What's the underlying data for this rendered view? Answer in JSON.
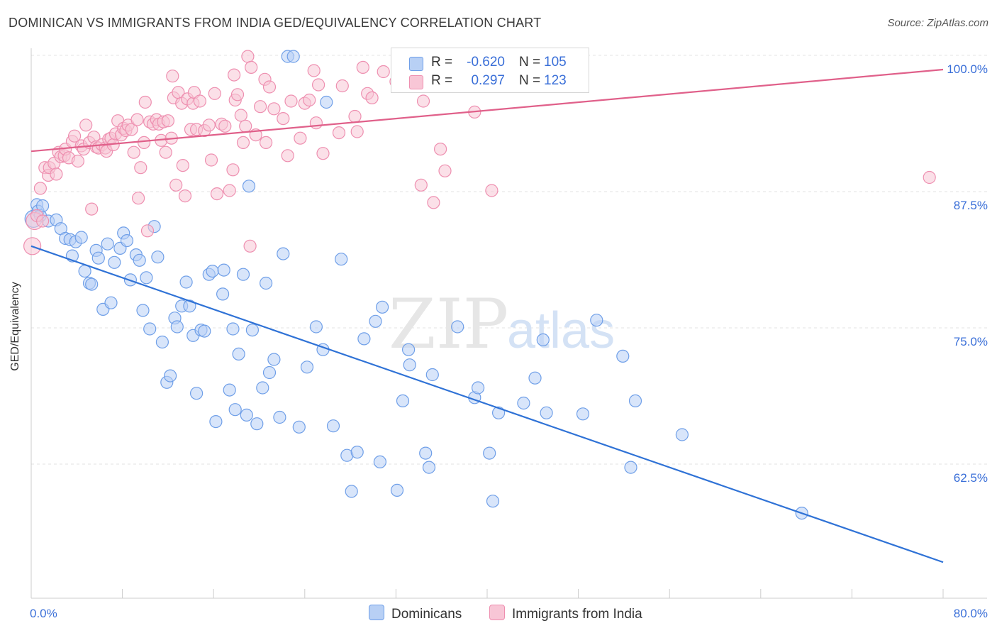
{
  "title": "DOMINICAN VS IMMIGRANTS FROM INDIA GED/EQUIVALENCY CORRELATION CHART",
  "source": "Source: ZipAtlas.com",
  "watermark": {
    "zip": "ZIP",
    "atlas": "atlas"
  },
  "legend": {
    "r_label": "R =",
    "n_label": "N =",
    "rows": [
      {
        "r": "-0.620",
        "n": "105"
      },
      {
        "r": "0.297",
        "n": "123"
      }
    ]
  },
  "chart_data": {
    "type": "scatter",
    "title": "DOMINICAN VS IMMIGRANTS FROM INDIA GED/EQUIVALENCY CORRELATION CHART",
    "xlabel": "",
    "ylabel": "GED/Equivalency",
    "xlim": [
      0,
      80
    ],
    "ylim": [
      50,
      100
    ],
    "x_ticks": [
      "0.0%",
      "80.0%"
    ],
    "y_ticks": [
      {
        "value": 100,
        "label": "100.0%"
      },
      {
        "value": 87.5,
        "label": "87.5%"
      },
      {
        "value": 75,
        "label": "75.0%"
      },
      {
        "value": 62.5,
        "label": "62.5%"
      }
    ],
    "grid": true,
    "legend_position": "top-center",
    "series": [
      {
        "name": "Dominicans",
        "color": "#6f9fe8",
        "fill": "#b8d0f5",
        "r": -0.62,
        "n": 105,
        "trend": {
          "x": [
            0,
            80
          ],
          "y": [
            82.5,
            53.5
          ],
          "color": "#2f72d6"
        },
        "points": [
          [
            0.2,
            85.0
          ],
          [
            0.5,
            86.3
          ],
          [
            0.6,
            85.7
          ],
          [
            0.8,
            85.3
          ],
          [
            1.0,
            86.2
          ],
          [
            1.5,
            84.8
          ],
          [
            2.2,
            84.9
          ],
          [
            2.6,
            84.1
          ],
          [
            3.0,
            83.2
          ],
          [
            3.4,
            83.1
          ],
          [
            3.6,
            81.6
          ],
          [
            3.9,
            82.9
          ],
          [
            4.4,
            83.3
          ],
          [
            4.7,
            80.2
          ],
          [
            5.1,
            79.1
          ],
          [
            5.3,
            79.0
          ],
          [
            5.7,
            82.1
          ],
          [
            5.9,
            81.4
          ],
          [
            6.3,
            76.7
          ],
          [
            6.7,
            82.7
          ],
          [
            7.0,
            77.3
          ],
          [
            7.3,
            81.0
          ],
          [
            7.8,
            82.3
          ],
          [
            8.1,
            83.7
          ],
          [
            8.4,
            83.0
          ],
          [
            8.7,
            79.4
          ],
          [
            9.2,
            81.7
          ],
          [
            9.5,
            81.2
          ],
          [
            9.8,
            76.6
          ],
          [
            10.1,
            79.6
          ],
          [
            10.4,
            74.9
          ],
          [
            10.8,
            84.3
          ],
          [
            11.1,
            81.5
          ],
          [
            11.5,
            73.7
          ],
          [
            11.9,
            70.0
          ],
          [
            12.2,
            70.6
          ],
          [
            12.6,
            75.9
          ],
          [
            12.8,
            75.1
          ],
          [
            13.2,
            77.0
          ],
          [
            13.6,
            79.2
          ],
          [
            13.9,
            77.0
          ],
          [
            14.2,
            74.3
          ],
          [
            14.5,
            69.0
          ],
          [
            14.9,
            74.8
          ],
          [
            15.2,
            74.7
          ],
          [
            15.6,
            79.9
          ],
          [
            15.9,
            80.2
          ],
          [
            16.2,
            66.4
          ],
          [
            16.8,
            78.1
          ],
          [
            16.9,
            80.3
          ],
          [
            17.4,
            69.3
          ],
          [
            17.7,
            74.9
          ],
          [
            17.9,
            67.5
          ],
          [
            18.2,
            72.6
          ],
          [
            18.6,
            79.9
          ],
          [
            18.9,
            67.0
          ],
          [
            19.1,
            88.0
          ],
          [
            19.4,
            74.8
          ],
          [
            19.8,
            66.2
          ],
          [
            20.3,
            69.5
          ],
          [
            20.6,
            79.1
          ],
          [
            20.9,
            70.9
          ],
          [
            21.3,
            72.1
          ],
          [
            21.8,
            66.8
          ],
          [
            22.1,
            81.8
          ],
          [
            22.5,
            99.9
          ],
          [
            23.0,
            99.9
          ],
          [
            23.5,
            65.9
          ],
          [
            24.2,
            71.4
          ],
          [
            25.0,
            75.1
          ],
          [
            25.6,
            73.0
          ],
          [
            25.9,
            95.7
          ],
          [
            26.5,
            66.0
          ],
          [
            27.2,
            81.3
          ],
          [
            27.7,
            63.3
          ],
          [
            28.1,
            60.0
          ],
          [
            28.6,
            63.6
          ],
          [
            29.2,
            74.0
          ],
          [
            30.2,
            75.6
          ],
          [
            30.6,
            62.7
          ],
          [
            30.8,
            76.9
          ],
          [
            32.1,
            60.1
          ],
          [
            32.6,
            68.3
          ],
          [
            33.1,
            73.0
          ],
          [
            33.2,
            71.6
          ],
          [
            34.6,
            63.5
          ],
          [
            34.9,
            62.2
          ],
          [
            35.2,
            70.7
          ],
          [
            37.4,
            75.1
          ],
          [
            38.9,
            68.6
          ],
          [
            39.2,
            69.5
          ],
          [
            40.2,
            63.5
          ],
          [
            40.5,
            59.1
          ],
          [
            41.0,
            67.2
          ],
          [
            43.2,
            68.1
          ],
          [
            44.2,
            70.4
          ],
          [
            44.9,
            73.9
          ],
          [
            45.2,
            67.2
          ],
          [
            48.4,
            67.1
          ],
          [
            49.6,
            75.7
          ],
          [
            51.9,
            72.4
          ],
          [
            52.6,
            62.2
          ],
          [
            53.0,
            68.3
          ],
          [
            57.1,
            65.2
          ],
          [
            67.6,
            58.0
          ]
        ]
      },
      {
        "name": "Immigrants from India",
        "color": "#ee8fb0",
        "fill": "#f8c6d6",
        "r": 0.297,
        "n": 123,
        "trend": {
          "x": [
            0,
            80
          ],
          "y": [
            91.2,
            98.7
          ],
          "color": "#e0608a"
        },
        "points": [
          [
            0.1,
            82.5
          ],
          [
            0.3,
            84.8
          ],
          [
            0.5,
            85.3
          ],
          [
            0.8,
            87.8
          ],
          [
            1.0,
            84.8
          ],
          [
            1.2,
            89.7
          ],
          [
            1.5,
            89.0
          ],
          [
            1.6,
            89.7
          ],
          [
            2.0,
            90.1
          ],
          [
            2.2,
            89.1
          ],
          [
            2.4,
            91.1
          ],
          [
            2.6,
            90.7
          ],
          [
            2.9,
            90.8
          ],
          [
            3.0,
            91.4
          ],
          [
            3.3,
            90.6
          ],
          [
            3.6,
            92.1
          ],
          [
            3.8,
            92.6
          ],
          [
            4.1,
            90.3
          ],
          [
            4.4,
            91.7
          ],
          [
            4.6,
            91.4
          ],
          [
            4.8,
            93.6
          ],
          [
            5.1,
            92.0
          ],
          [
            5.3,
            85.9
          ],
          [
            5.5,
            92.5
          ],
          [
            5.7,
            91.6
          ],
          [
            5.9,
            91.5
          ],
          [
            6.2,
            91.8
          ],
          [
            6.5,
            91.5
          ],
          [
            6.6,
            91.2
          ],
          [
            6.8,
            92.3
          ],
          [
            7.0,
            92.4
          ],
          [
            7.2,
            91.8
          ],
          [
            7.4,
            92.8
          ],
          [
            7.6,
            94.0
          ],
          [
            7.9,
            92.7
          ],
          [
            8.1,
            93.3
          ],
          [
            8.3,
            93.1
          ],
          [
            8.5,
            93.6
          ],
          [
            8.8,
            93.2
          ],
          [
            9.0,
            91.1
          ],
          [
            9.3,
            94.1
          ],
          [
            9.4,
            86.9
          ],
          [
            9.6,
            89.7
          ],
          [
            9.9,
            92.0
          ],
          [
            10.0,
            95.7
          ],
          [
            10.2,
            83.9
          ],
          [
            10.4,
            93.9
          ],
          [
            10.7,
            93.7
          ],
          [
            11.0,
            94.1
          ],
          [
            11.2,
            93.7
          ],
          [
            11.4,
            92.2
          ],
          [
            11.6,
            93.9
          ],
          [
            11.8,
            91.1
          ],
          [
            12.0,
            94.0
          ],
          [
            12.3,
            92.4
          ],
          [
            12.4,
            98.1
          ],
          [
            12.5,
            96.1
          ],
          [
            12.7,
            88.1
          ],
          [
            12.9,
            96.6
          ],
          [
            13.2,
            95.6
          ],
          [
            13.3,
            89.9
          ],
          [
            13.5,
            87.1
          ],
          [
            13.7,
            96.0
          ],
          [
            14.0,
            93.2
          ],
          [
            14.2,
            95.6
          ],
          [
            14.3,
            96.6
          ],
          [
            14.5,
            93.2
          ],
          [
            14.8,
            95.8
          ],
          [
            15.2,
            93.1
          ],
          [
            15.6,
            93.6
          ],
          [
            15.8,
            90.4
          ],
          [
            16.1,
            96.5
          ],
          [
            16.3,
            87.3
          ],
          [
            16.7,
            93.7
          ],
          [
            17.0,
            93.5
          ],
          [
            17.4,
            87.6
          ],
          [
            17.7,
            89.5
          ],
          [
            17.8,
            98.2
          ],
          [
            17.9,
            95.9
          ],
          [
            18.1,
            96.4
          ],
          [
            18.4,
            94.5
          ],
          [
            18.6,
            92.0
          ],
          [
            18.8,
            93.5
          ],
          [
            19.0,
            99.9
          ],
          [
            19.2,
            82.5
          ],
          [
            19.3,
            98.9
          ],
          [
            19.7,
            92.7
          ],
          [
            20.1,
            95.3
          ],
          [
            20.5,
            97.8
          ],
          [
            20.6,
            92.0
          ],
          [
            20.9,
            97.1
          ],
          [
            21.3,
            95.1
          ],
          [
            22.1,
            94.2
          ],
          [
            22.5,
            90.8
          ],
          [
            22.8,
            95.8
          ],
          [
            23.6,
            92.4
          ],
          [
            24.0,
            95.6
          ],
          [
            24.4,
            95.9
          ],
          [
            24.8,
            98.6
          ],
          [
            25.0,
            93.8
          ],
          [
            25.2,
            97.3
          ],
          [
            25.6,
            91.0
          ],
          [
            27.0,
            92.9
          ],
          [
            27.3,
            97.2
          ],
          [
            28.4,
            94.4
          ],
          [
            28.6,
            93.0
          ],
          [
            29.1,
            98.9
          ],
          [
            29.5,
            96.5
          ],
          [
            29.9,
            96.1
          ],
          [
            30.9,
            98.5
          ],
          [
            32.0,
            97.6
          ],
          [
            33.1,
            97.6
          ],
          [
            34.2,
            88.1
          ],
          [
            34.4,
            95.8
          ],
          [
            35.3,
            86.5
          ],
          [
            35.9,
            91.4
          ],
          [
            36.3,
            89.4
          ],
          [
            38.9,
            94.8
          ],
          [
            40.4,
            87.6
          ],
          [
            78.8,
            88.8
          ]
        ]
      }
    ]
  }
}
